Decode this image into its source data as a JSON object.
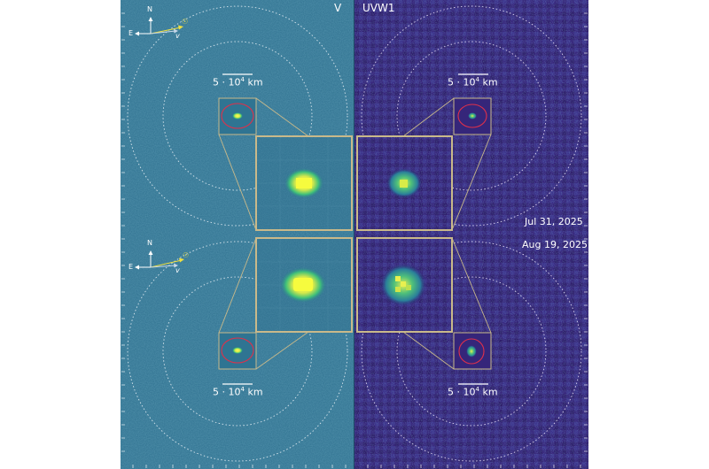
{
  "panels": {
    "left_filter": "V",
    "right_filter": "UVW1"
  },
  "scale_bar": {
    "label_prefix": "5 · 10",
    "label_exp": "4",
    "label_unit": "km"
  },
  "compass": {
    "north": "N",
    "east": "E",
    "velocity": "v",
    "sun_symbol": "☉"
  },
  "dates": {
    "top": "Jul 31, 2025",
    "bottom": "Aug 19, 2025"
  },
  "colors": {
    "v_background": "#2a6e8f",
    "uvw1_background": "#3a1a6e",
    "border_frame": "#c9b98a",
    "aperture": "#e0304a",
    "compass_arrow": "#f0e040",
    "source_core": "#f0f060",
    "source_glow": "#3fc07a"
  }
}
